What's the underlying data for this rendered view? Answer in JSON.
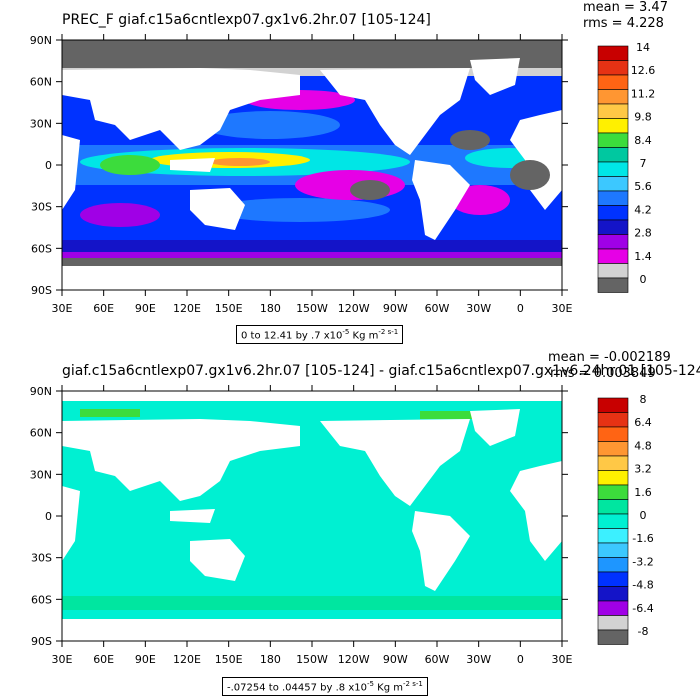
{
  "chart_data": [
    {
      "type": "heatmap",
      "title": "PREC_F giaf.c15a6cntlexp07.gx1v6.2hr.07 [105-124]",
      "stats": {
        "mean": "mean = 3.47",
        "rms": "rms = 4.228"
      },
      "x_ticks": [
        "30E",
        "60E",
        "90E",
        "120E",
        "150E",
        "180",
        "150W",
        "120W",
        "90W",
        "60W",
        "30W",
        "0",
        "30E"
      ],
      "y_ticks": [
        "90N",
        "60N",
        "30N",
        "0",
        "30S",
        "60S",
        "90S"
      ],
      "colorbar_labels": [
        "14",
        "12.6",
        "11.2",
        "9.8",
        "8.4",
        "7",
        "5.6",
        "4.2",
        "2.8",
        "1.4",
        "0"
      ],
      "colorbar_colors": [
        "#c80000",
        "#e63214",
        "#ff6414",
        "#ff9632",
        "#ffc846",
        "#fff000",
        "#3cdc3c",
        "#00c8a0",
        "#00e6e6",
        "#3cc8ff",
        "#1e78ff",
        "#0032ff",
        "#1414c8",
        "#a000e6",
        "#e600e6",
        "#d2d2d2",
        "#646464"
      ],
      "caption": {
        "main": "0 to 12.41 by .7 x10",
        "exp": "-5",
        "unit": " Kg m",
        "unit_exp": "-2 s-1"
      }
    },
    {
      "type": "heatmap",
      "title": "giaf.c15a6cntlexp07.gx1v6.2hr.07 [105-124] - giaf.c15a6cntlexp07.gx1v6.24hr.01 [105-124]",
      "stats": {
        "mean": "mean = -0.002189",
        "rms": "rms = 0.003849"
      },
      "x_ticks": [
        "30E",
        "60E",
        "90E",
        "120E",
        "150E",
        "180",
        "150W",
        "120W",
        "90W",
        "60W",
        "30W",
        "0",
        "30E"
      ],
      "y_ticks": [
        "90N",
        "60N",
        "30N",
        "0",
        "30S",
        "60S",
        "90S"
      ],
      "colorbar_labels": [
        "8",
        "6.4",
        "4.8",
        "3.2",
        "1.6",
        "0",
        "-1.6",
        "-3.2",
        "-4.8",
        "-6.4",
        "-8"
      ],
      "colorbar_colors": [
        "#c80000",
        "#e63214",
        "#ff6414",
        "#ff9632",
        "#ffc846",
        "#fff000",
        "#3cdc3c",
        "#00e6a0",
        "#00f0d2",
        "#3cf0ff",
        "#3cc8ff",
        "#1e96ff",
        "#0032ff",
        "#1414c8",
        "#a000e6",
        "#d2d2d2",
        "#646464"
      ],
      "caption": {
        "main": "-.07254 to .04457 by .8 x10",
        "exp": "-5",
        "unit": " Kg m",
        "unit_exp": "-2 s-1"
      }
    }
  ]
}
